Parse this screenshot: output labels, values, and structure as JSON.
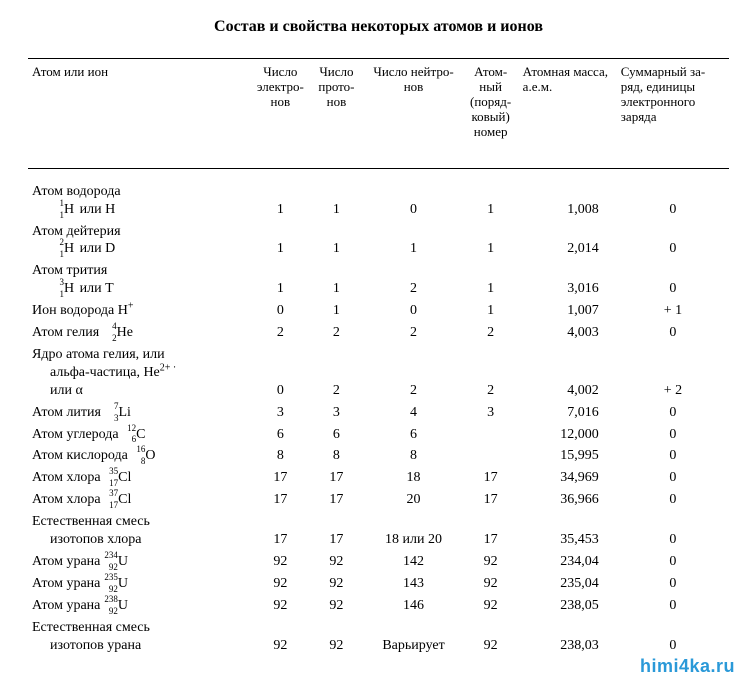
{
  "title": "Состав и свойства некоторых атомов и ионов",
  "watermark": "himi4ka.ru",
  "columns": {
    "species": "Атом или ион",
    "electrons": "Число электро-\nнов",
    "protons": "Число прото-\nнов",
    "neutrons": "Число нейтро-\nнов",
    "atomic_num": "Атом-\nный\n(поряд-\nковый)\nномер",
    "mass": "Атомная масса,\nа.е.м.",
    "charge": "Суммарный за-\nряд, единицы\nэлектронного\nзаряда"
  },
  "rows": [
    {
      "label_main": "Атом водорода",
      "label_sub": "<span class='iso'><span class='mass-n'>1</span><span class='atom-n'>1</span>H</span> или H",
      "e": "1",
      "p": "1",
      "n": "0",
      "z": "1",
      "m": "1,008",
      "q": "0"
    },
    {
      "label_main": "Атом дейтерия",
      "label_sub": "<span class='iso'><span class='mass-n'>2</span><span class='atom-n'>1</span>H</span> или D",
      "e": "1",
      "p": "1",
      "n": "1",
      "z": "1",
      "m": "2,014",
      "q": "0"
    },
    {
      "label_main": "Атом трития",
      "label_sub": "<span class='iso'><span class='mass-n'>3</span><span class='atom-n'>1</span>H</span> или T",
      "e": "1",
      "p": "1",
      "n": "2",
      "z": "1",
      "m": "3,016",
      "q": "0"
    },
    {
      "label_main": "Ион водорода H<sup>+</sup>",
      "label_sub": "",
      "e": "0",
      "p": "1",
      "n": "0",
      "z": "1",
      "m": "1,007",
      "q": "+ 1"
    },
    {
      "label_main": "Атом гелия <span class='iso'><span class='mass-n'>4</span><span class='atom-n'>2</span>He</span>",
      "label_sub": "",
      "e": "2",
      "p": "2",
      "n": "2",
      "z": "2",
      "m": "4,003",
      "q": "0"
    },
    {
      "label_main": "Ядро атома гелия, или",
      "label_sub": "альфа-частица, He<sup>2+ ·</sup><br>или α",
      "e": "0",
      "p": "2",
      "n": "2",
      "z": "2",
      "m": "4,002",
      "q": "+ 2"
    },
    {
      "label_main": "Атом лития <span class='iso'><span class='mass-n'>7</span><span class='atom-n'>3</span>Li</span>",
      "label_sub": "",
      "e": "3",
      "p": "3",
      "n": "4",
      "z": "3",
      "m": "7,016",
      "q": "0"
    },
    {
      "label_main": "Атом углерода <span class='iso'><span class='mass-n'>12</span><span class='atom-n'>6</span>C</span>",
      "label_sub": "",
      "e": "6",
      "p": "6",
      "n": "6",
      "z": "",
      "m": "12,000",
      "q": "0"
    },
    {
      "label_main": "Атом кислорода <span class='iso'><span class='mass-n'>16</span><span class='atom-n'>8</span>O</span>",
      "label_sub": "",
      "e": "8",
      "p": "8",
      "n": "8",
      "z": "",
      "m": "15,995",
      "q": "0"
    },
    {
      "label_main": "Атом хлора <span class='iso'><span class='mass-n'>35</span><span class='atom-n'>17</span>Cl</span>",
      "label_sub": "",
      "e": "17",
      "p": "17",
      "n": "18",
      "z": "17",
      "m": "34,969",
      "q": "0"
    },
    {
      "label_main": "Атом хлора <span class='iso'><span class='mass-n'>37</span><span class='atom-n'>17</span>Cl</span>",
      "label_sub": "",
      "e": "17",
      "p": "17",
      "n": "20",
      "z": "17",
      "m": "36,966",
      "q": "0"
    },
    {
      "label_main": "Естественная смесь",
      "label_sub": "изотопов хлора",
      "e": "17",
      "p": "17",
      "n": "18 или 20",
      "z": "17",
      "m": "35,453",
      "q": "0"
    },
    {
      "label_main": "Атом урана <span class='iso'><span class='mass-n'>234</span><span class='atom-n'>92</span>U</span>",
      "label_sub": "",
      "e": "92",
      "p": "92",
      "n": "142",
      "z": "92",
      "m": "234,04",
      "q": "0"
    },
    {
      "label_main": "Атом урана <span class='iso'><span class='mass-n'>235</span><span class='atom-n'>92</span>U</span>",
      "label_sub": "",
      "e": "92",
      "p": "92",
      "n": "143",
      "z": "92",
      "m": "235,04",
      "q": "0"
    },
    {
      "label_main": "Атом урана <span class='iso'><span class='mass-n'>238</span><span class='atom-n'>92</span>U</span>",
      "label_sub": "",
      "e": "92",
      "p": "92",
      "n": "146",
      "z": "92",
      "m": "238,05",
      "q": "0"
    },
    {
      "label_main": "Естественная смесь",
      "label_sub": "изотопов урана",
      "e": "92",
      "p": "92",
      "n": "Варьирует",
      "z": "92",
      "m": "238,03",
      "q": "0"
    }
  ],
  "col_widths": {
    "species": "32%",
    "electrons": "8%",
    "protons": "8%",
    "neutrons": "14%",
    "atomic_num": "8%",
    "mass": "14%",
    "charge": "16%"
  }
}
